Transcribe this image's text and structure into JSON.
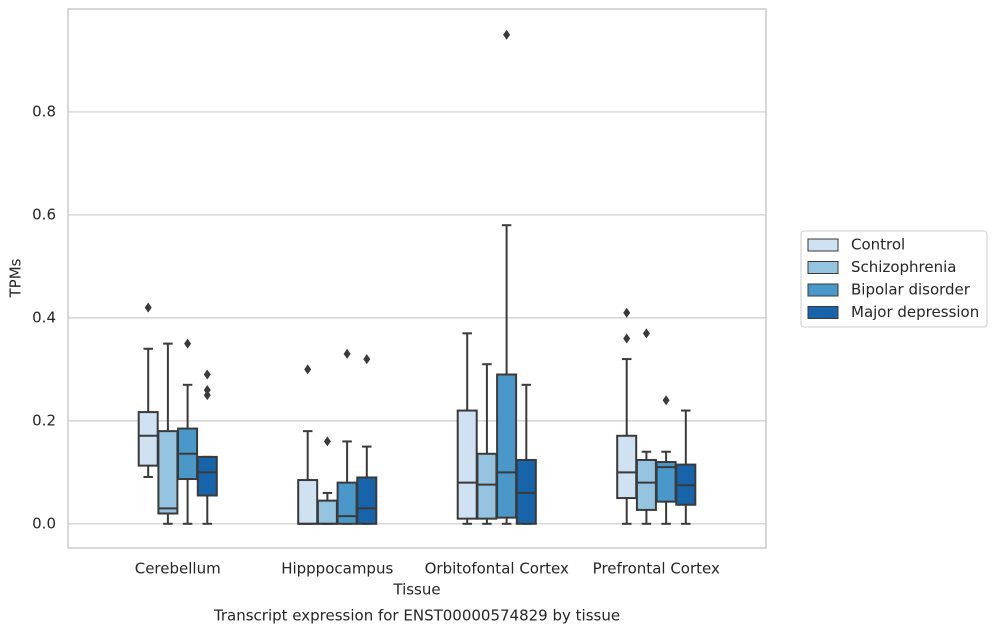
{
  "chart_data": {
    "type": "box",
    "title": "Transcript expression for ENST00000574829 by tissue",
    "x_label": "Tissue",
    "y_label": "TPMs",
    "categories": [
      "Cerebellum",
      "Hipppocampus",
      "Orbitofontal Cortex",
      "Prefrontal Cortex"
    ],
    "ylim": [
      -0.047,
      1.0
    ],
    "yticks": [
      {
        "value": 0,
        "label": "0.0"
      },
      0.2,
      0.4,
      0.6,
      0.8
    ],
    "grid": true,
    "legend": "right",
    "series": [
      {
        "name": "Control",
        "color": "#d0e1f2",
        "values": [
          {
            "whislo": 0.091,
            "q1": 0.113,
            "med": 0.171,
            "q3": 0.217,
            "whishi": 0.34,
            "fliers": [
              0.42
            ]
          },
          {
            "whislo": 0,
            "q1": 0,
            "med": 0,
            "q3": 0.085,
            "whishi": 0.18,
            "fliers": [
              0.3
            ]
          },
          {
            "whislo": 0,
            "q1": 0.01,
            "med": 0.08,
            "q3": 0.22,
            "whishi": 0.37,
            "fliers": []
          },
          {
            "whislo": 0,
            "q1": 0.05,
            "med": 0.1,
            "q3": 0.171,
            "whishi": 0.32,
            "fliers": [
              0.36,
              0.41
            ]
          }
        ]
      },
      {
        "name": "Schizophrenia",
        "color": "#94c4df",
        "values": [
          {
            "whislo": 0,
            "q1": 0.02,
            "med": 0.03,
            "q3": 0.18,
            "whishi": 0.35,
            "fliers": []
          },
          {
            "whislo": 0,
            "q1": 0,
            "med": 0,
            "q3": 0.045,
            "whishi": 0.06,
            "fliers": [
              0.16
            ]
          },
          {
            "whislo": 0,
            "q1": 0.01,
            "med": 0.076,
            "q3": 0.136,
            "whishi": 0.31,
            "fliers": []
          },
          {
            "whislo": 0,
            "q1": 0.027,
            "med": 0.08,
            "q3": 0.124,
            "whishi": 0.14,
            "fliers": [
              0.37
            ]
          }
        ]
      },
      {
        "name": "Bipolar disorder",
        "color": "#4a98c9",
        "values": [
          {
            "whislo": 0,
            "q1": 0.087,
            "med": 0.136,
            "q3": 0.185,
            "whishi": 0.27,
            "fliers": [
              0.35
            ]
          },
          {
            "whislo": 0,
            "q1": 0,
            "med": 0.015,
            "q3": 0.08,
            "whishi": 0.16,
            "fliers": [
              0.33
            ]
          },
          {
            "whislo": 0,
            "q1": 0.012,
            "med": 0.1,
            "q3": 0.29,
            "whishi": 0.58,
            "fliers": [
              0.95
            ]
          },
          {
            "whislo": 0,
            "q1": 0.043,
            "med": 0.11,
            "q3": 0.12,
            "whishi": 0.14,
            "fliers": [
              0.24
            ]
          }
        ]
      },
      {
        "name": "Major depression",
        "color": "#1764ab",
        "values": [
          {
            "whislo": 0,
            "q1": 0.055,
            "med": 0.1,
            "q3": 0.13,
            "whishi": 0.13,
            "fliers": [
              0.29,
              0.26,
              0.25
            ]
          },
          {
            "whislo": 0,
            "q1": 0,
            "med": 0.03,
            "q3": 0.09,
            "whishi": 0.15,
            "fliers": [
              0.32
            ]
          },
          {
            "whislo": 0,
            "q1": 0,
            "med": 0.06,
            "q3": 0.124,
            "whishi": 0.27,
            "fliers": []
          },
          {
            "whislo": 0,
            "q1": 0.037,
            "med": 0.075,
            "q3": 0.115,
            "whishi": 0.22,
            "fliers": []
          }
        ]
      }
    ]
  }
}
